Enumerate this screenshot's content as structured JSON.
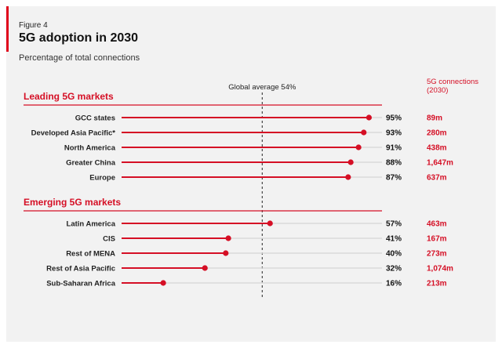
{
  "figure_label": "Figure 4",
  "title": "5G adoption in 2030",
  "subtitle": "Percentage of total connections",
  "chart_data": {
    "type": "dot-bar",
    "title": "5G adoption in 2030",
    "subtitle": "Percentage of total connections",
    "unit": "%",
    "reference_line": {
      "label": "Global average 54%",
      "value": 54
    },
    "connections_header": "5G connections (2030)",
    "connections_header_lines": [
      "5G connections",
      "(2030)"
    ],
    "accent_color": "#d50f25",
    "track_color": "#d9d9d9",
    "groups": [
      {
        "name": "Leading 5G markets",
        "rows": [
          {
            "label": "GCC states",
            "value": 95,
            "value_label": "95%",
            "connections": "89m"
          },
          {
            "label": "Developed Asia Pacific*",
            "value": 93,
            "value_label": "93%",
            "connections": "280m"
          },
          {
            "label": "North America",
            "value": 91,
            "value_label": "91%",
            "connections": "438m"
          },
          {
            "label": "Greater China",
            "value": 88,
            "value_label": "88%",
            "connections": "1,647m"
          },
          {
            "label": "Europe",
            "value": 87,
            "value_label": "87%",
            "connections": "637m"
          }
        ]
      },
      {
        "name": "Emerging 5G markets",
        "rows": [
          {
            "label": "Latin America",
            "value": 57,
            "value_label": "57%",
            "connections": "463m"
          },
          {
            "label": "CIS",
            "value": 41,
            "value_label": "41%",
            "connections": "167m"
          },
          {
            "label": "Rest of MENA",
            "value": 40,
            "value_label": "40%",
            "connections": "273m"
          },
          {
            "label": "Rest of Asia Pacific",
            "value": 32,
            "value_label": "32%",
            "connections": "1,074m"
          },
          {
            "label": "Sub-Saharan Africa",
            "value": 16,
            "value_label": "16%",
            "connections": "213m"
          }
        ]
      }
    ]
  }
}
